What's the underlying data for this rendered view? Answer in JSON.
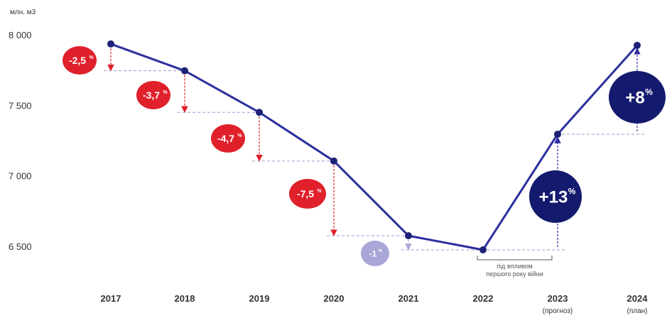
{
  "chart_data": {
    "type": "line",
    "unit_label": "млн. м3",
    "x": [
      "2017",
      "2018",
      "2019",
      "2020",
      "2021",
      "2022",
      "2023",
      "2024"
    ],
    "x_sublabels": [
      "",
      "",
      "",
      "",
      "",
      "",
      "(прогноз)",
      "(план)"
    ],
    "series": [
      {
        "values": [
          7940,
          7750,
          7455,
          7110,
          6580,
          6480,
          7300,
          7930
        ]
      }
    ],
    "ylim": [
      6450,
      8050
    ],
    "yticks": [
      6500,
      7000,
      7500,
      8000
    ],
    "ytick_labels": [
      "6 500",
      "7 000",
      "7 500",
      "8 000"
    ],
    "grid": false,
    "change_badges": [
      {
        "index": 1,
        "label": "-2,5",
        "suffix": "%",
        "color": "#e0202a",
        "direction": "down"
      },
      {
        "index": 2,
        "label": "-3,7",
        "suffix": "%",
        "color": "#e0202a",
        "direction": "down"
      },
      {
        "index": 3,
        "label": "-4,7",
        "suffix": "%",
        "color": "#e0202a",
        "direction": "down"
      },
      {
        "index": 4,
        "label": "-7,5",
        "suffix": "%",
        "color": "#e0202a",
        "direction": "down"
      },
      {
        "index": 5,
        "label": "-1",
        "suffix": "%",
        "color": "#a9a6d8",
        "direction": "down"
      },
      {
        "index": 6,
        "label": "+13",
        "suffix": "%",
        "color": "#141a6e",
        "direction": "up"
      },
      {
        "index": 7,
        "label": "+8",
        "suffix": "%",
        "color": "#141a6e",
        "direction": "up"
      }
    ],
    "annotation": {
      "lines": [
        "під впливом",
        "першого року війни"
      ],
      "between": [
        5,
        6
      ]
    },
    "colors": {
      "line": "#2b2f9e",
      "marker": "#1c2178",
      "decline_arrow": "#e0202a",
      "growth_arrow": "#2b2f9e",
      "guide": "#9a9ad0"
    }
  }
}
